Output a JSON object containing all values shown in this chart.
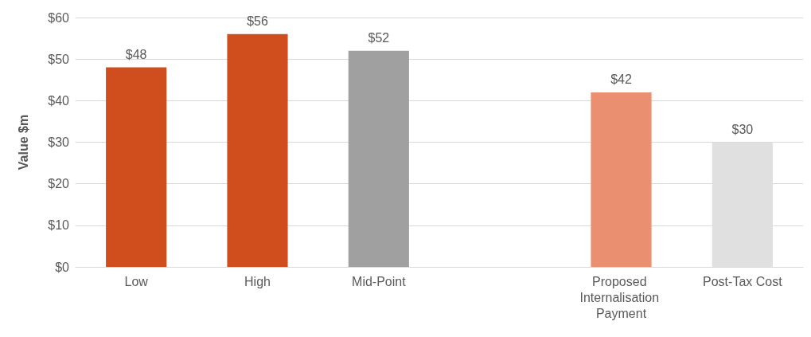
{
  "chart_data": {
    "type": "bar",
    "ylabel": "Value $m",
    "categories": [
      "Low",
      "High",
      "Mid-Point",
      null,
      "Proposed Internalisation Payment",
      "Post-Tax Cost"
    ],
    "values": [
      48,
      56,
      52,
      null,
      42,
      30
    ],
    "colors": [
      "#d04e1e",
      "#d04e1e",
      "#a0a0a0",
      null,
      "#ea9070",
      "#e0e0e0"
    ],
    "value_labels": [
      "$48",
      "$56",
      "$52",
      null,
      "$42",
      "$30"
    ],
    "ylim": [
      0,
      60
    ],
    "yticks": [
      {
        "value": 0,
        "label": "$0"
      },
      {
        "value": 10,
        "label": "$10"
      },
      {
        "value": 20,
        "label": "$20"
      },
      {
        "value": 30,
        "label": "$30"
      },
      {
        "value": 40,
        "label": "$40"
      },
      {
        "value": 50,
        "label": "$50"
      },
      {
        "value": 60,
        "label": "$60"
      }
    ],
    "grid": "y"
  }
}
